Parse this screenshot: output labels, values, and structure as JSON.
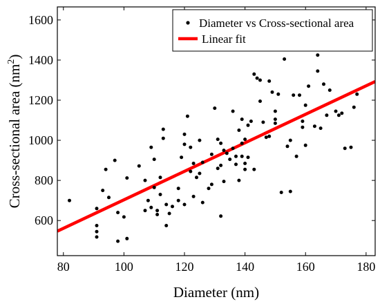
{
  "chart_data": {
    "type": "scatter",
    "title": "",
    "xlabel": "Diameter (nm)",
    "ylabel": "Cross-sectional area (nm",
    "ylabel_sup": "2",
    "ylabel_close": ")",
    "xlim": [
      78,
      183
    ],
    "ylim": [
      425,
      1665
    ],
    "xticks": [
      80,
      100,
      120,
      140,
      160,
      180
    ],
    "yticks": [
      600,
      800,
      1000,
      1200,
      1400,
      1600
    ],
    "grid": false,
    "legend_position": "top-right",
    "colors": {
      "points": "#000000",
      "fit": "#ff0000"
    },
    "series": [
      {
        "name": "Diameter vs Cross-sectional area",
        "type": "scatter",
        "points": [
          [
            82,
            700
          ],
          [
            91,
            660
          ],
          [
            91,
            575
          ],
          [
            91,
            545
          ],
          [
            91,
            518
          ],
          [
            93,
            750
          ],
          [
            94,
            855
          ],
          [
            95,
            715
          ],
          [
            97,
            900
          ],
          [
            98,
            640
          ],
          [
            98,
            497
          ],
          [
            100,
            618
          ],
          [
            101,
            812
          ],
          [
            101,
            510
          ],
          [
            105,
            872
          ],
          [
            107,
            650
          ],
          [
            107,
            800
          ],
          [
            108,
            700
          ],
          [
            109,
            965
          ],
          [
            109,
            665
          ],
          [
            110,
            905
          ],
          [
            110,
            765
          ],
          [
            111,
            630
          ],
          [
            111,
            650
          ],
          [
            112,
            815
          ],
          [
            112,
            730
          ],
          [
            113,
            1055
          ],
          [
            113,
            1010
          ],
          [
            114,
            575
          ],
          [
            114,
            680
          ],
          [
            115,
            635
          ],
          [
            116,
            670
          ],
          [
            118,
            700
          ],
          [
            118,
            760
          ],
          [
            119,
            915
          ],
          [
            120,
            980
          ],
          [
            120,
            1030
          ],
          [
            120,
            680
          ],
          [
            121,
            1120
          ],
          [
            122,
            845
          ],
          [
            122,
            965
          ],
          [
            123,
            885
          ],
          [
            123,
            720
          ],
          [
            124,
            815
          ],
          [
            125,
            1000
          ],
          [
            125,
            835
          ],
          [
            126,
            890
          ],
          [
            126,
            690
          ],
          [
            128,
            760
          ],
          [
            129,
            930
          ],
          [
            129,
            780
          ],
          [
            130,
            1160
          ],
          [
            131,
            860
          ],
          [
            131,
            1005
          ],
          [
            132,
            622
          ],
          [
            132,
            875
          ],
          [
            132,
            985
          ],
          [
            133,
            950
          ],
          [
            133,
            795
          ],
          [
            134,
            935
          ],
          [
            135,
            905
          ],
          [
            136,
            960
          ],
          [
            136,
            1145
          ],
          [
            137,
            880
          ],
          [
            137,
            920
          ],
          [
            138,
            1050
          ],
          [
            138,
            800
          ],
          [
            139,
            985
          ],
          [
            139,
            920
          ],
          [
            139,
            1105
          ],
          [
            140,
            1005
          ],
          [
            140,
            885
          ],
          [
            140,
            855
          ],
          [
            141,
            1075
          ],
          [
            141,
            915
          ],
          [
            142,
            1095
          ],
          [
            143,
            1330
          ],
          [
            143,
            855
          ],
          [
            144,
            1310
          ],
          [
            145,
            1195
          ],
          [
            145,
            1300
          ],
          [
            146,
            1090
          ],
          [
            147,
            1015
          ],
          [
            148,
            1295
          ],
          [
            148,
            1020
          ],
          [
            149,
            1240
          ],
          [
            150,
            1105
          ],
          [
            150,
            1085
          ],
          [
            150,
            1145
          ],
          [
            151,
            1230
          ],
          [
            152,
            740
          ],
          [
            153,
            1405
          ],
          [
            154,
            970
          ],
          [
            155,
            745
          ],
          [
            155,
            1000
          ],
          [
            156,
            1225
          ],
          [
            157,
            920
          ],
          [
            158,
            1225
          ],
          [
            159,
            1095
          ],
          [
            159,
            1065
          ],
          [
            160,
            975
          ],
          [
            160,
            1175
          ],
          [
            161,
            1270
          ],
          [
            163,
            1070
          ],
          [
            164,
            1425
          ],
          [
            164,
            1345
          ],
          [
            165,
            1060
          ],
          [
            166,
            1280
          ],
          [
            167,
            1125
          ],
          [
            168,
            1250
          ],
          [
            170,
            1145
          ],
          [
            171,
            1125
          ],
          [
            172,
            1135
          ],
          [
            173,
            960
          ],
          [
            175,
            965
          ],
          [
            176,
            1165
          ],
          [
            177,
            1230
          ]
        ]
      },
      {
        "name": "Linear fit",
        "type": "line",
        "x": [
          78,
          183
        ],
        "y": [
          547,
          1293
        ]
      }
    ]
  }
}
